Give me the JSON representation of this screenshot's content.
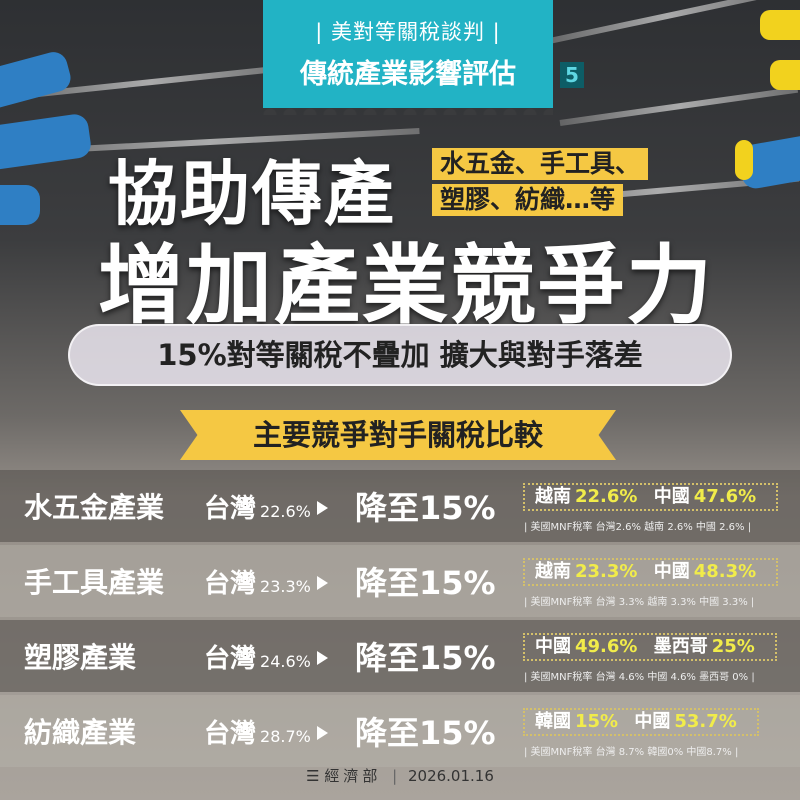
{
  "header": {
    "series": "| 美對等關稅談判 |",
    "title": "傳統產業影響評估",
    "page_number": "5"
  },
  "headline": {
    "line1": "協助傳產",
    "tags": [
      "水五金、手工具、",
      "塑膠、紡織…等"
    ],
    "line2": "增加產業競爭力"
  },
  "subtitle": "15%對等關稅不疊加 擴大與對手落差",
  "section_title": "主要競爭對手關稅比較",
  "colors": {
    "teal": "#22b3c5",
    "yellow": "#f5c843",
    "highlight": "#f1ec4a"
  },
  "rows": [
    {
      "industry": "水五金產業",
      "tw_label": "台灣",
      "tw_rate": "22.6%",
      "new_rate": "降至15%",
      "comp": [
        {
          "c": "越南",
          "r": "22.6%"
        },
        {
          "c": "中國",
          "r": "47.6%"
        }
      ],
      "note": "| 美國MNF稅率 台灣2.6% 越南 2.6% 中國 2.6% |"
    },
    {
      "industry": "手工具產業",
      "tw_label": "台灣",
      "tw_rate": "23.3%",
      "new_rate": "降至15%",
      "comp": [
        {
          "c": "越南",
          "r": "23.3%"
        },
        {
          "c": "中國",
          "r": "48.3%"
        }
      ],
      "note": "| 美國MNF稅率 台灣 3.3% 越南 3.3% 中國 3.3% |"
    },
    {
      "industry": "塑膠產業",
      "tw_label": "台灣",
      "tw_rate": "24.6%",
      "new_rate": "降至15%",
      "comp": [
        {
          "c": "中國",
          "r": "49.6%"
        },
        {
          "c": "墨西哥",
          "r": "25%"
        }
      ],
      "note": "| 美國MNF稅率 台灣 4.6% 中國 4.6% 墨西哥 0% |"
    },
    {
      "industry": "紡織產業",
      "tw_label": "台灣",
      "tw_rate": "28.7%",
      "new_rate": "降至15%",
      "comp": [
        {
          "c": "韓國",
          "r": "15%"
        },
        {
          "c": "中國",
          "r": "53.7%"
        }
      ],
      "note": "| 美國MNF稅率 台灣 8.7%  韓國0%  中國8.7% |"
    }
  ],
  "footer": {
    "org": "經濟部",
    "date": "2026.01.16"
  }
}
